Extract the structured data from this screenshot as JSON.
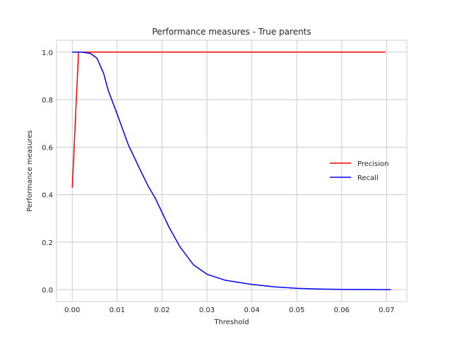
{
  "chart_data": {
    "type": "line",
    "title": "Performance measures - True parents",
    "xlabel": "Threshold",
    "ylabel": "Performance measures",
    "xlim": [
      -0.0035,
      0.0745
    ],
    "ylim": [
      -0.05,
      1.05
    ],
    "xticks": [
      0.0,
      0.01,
      0.02,
      0.03,
      0.04,
      0.05,
      0.06,
      0.07
    ],
    "xtick_labels": [
      "0.00",
      "0.01",
      "0.02",
      "0.03",
      "0.04",
      "0.05",
      "0.06",
      "0.07"
    ],
    "yticks": [
      0.0,
      0.2,
      0.4,
      0.6,
      0.8,
      1.0
    ],
    "ytick_labels": [
      "0.0",
      "0.2",
      "0.4",
      "0.6",
      "0.8",
      "1.0"
    ],
    "grid": true,
    "legend_position": "center-right",
    "series": [
      {
        "name": "Precision",
        "color": "#ff0000",
        "x": [
          0.0,
          0.0014,
          0.005,
          0.01,
          0.02,
          0.03,
          0.04,
          0.05,
          0.06,
          0.0697
        ],
        "y": [
          0.43,
          1.0,
          1.0,
          1.0,
          1.0,
          1.0,
          1.0,
          1.0,
          1.0,
          1.0
        ]
      },
      {
        "name": "Recall",
        "color": "#0000ff",
        "x": [
          0.0,
          0.002,
          0.004,
          0.0055,
          0.007,
          0.008,
          0.01,
          0.0125,
          0.015,
          0.0168,
          0.0185,
          0.0215,
          0.024,
          0.027,
          0.03,
          0.034,
          0.04,
          0.045,
          0.05,
          0.055,
          0.06,
          0.065,
          0.071
        ],
        "y": [
          1.0,
          1.0,
          0.995,
          0.975,
          0.91,
          0.84,
          0.74,
          0.61,
          0.51,
          0.44,
          0.385,
          0.265,
          0.18,
          0.105,
          0.065,
          0.04,
          0.022,
          0.012,
          0.006,
          0.003,
          0.0015,
          0.0008,
          0.0003
        ]
      }
    ]
  }
}
